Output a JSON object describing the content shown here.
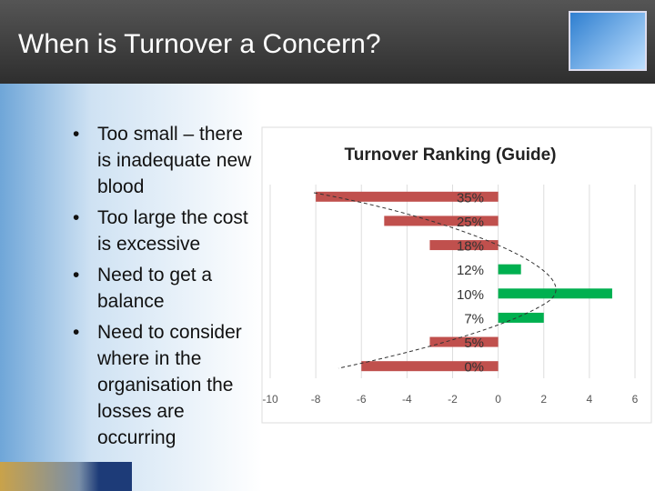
{
  "slide": {
    "title": "When is Turnover a Concern?",
    "bullets": [
      "Too small – there is inadequate new blood",
      "Too large the cost is excessive",
      "Need to get a balance",
      "Need to consider where in the organisation the losses are occurring"
    ]
  },
  "chart_data": {
    "type": "barh",
    "title": "Turnover Ranking (Guide)",
    "categories": [
      "35%",
      "25%",
      "18%",
      "12%",
      "10%",
      "7%",
      "5%",
      "0%"
    ],
    "values": [
      -8,
      -5,
      -3,
      1,
      5,
      2,
      -3,
      -6
    ],
    "colors": [
      "#c0504d",
      "#c0504d",
      "#c0504d",
      "#00b050",
      "#00b050",
      "#00b050",
      "#c0504d",
      "#c0504d"
    ],
    "xlim": [
      -10,
      6
    ],
    "xticks": [
      -10,
      -8,
      -6,
      -4,
      -2,
      0,
      2,
      4,
      6
    ],
    "grid": true
  }
}
